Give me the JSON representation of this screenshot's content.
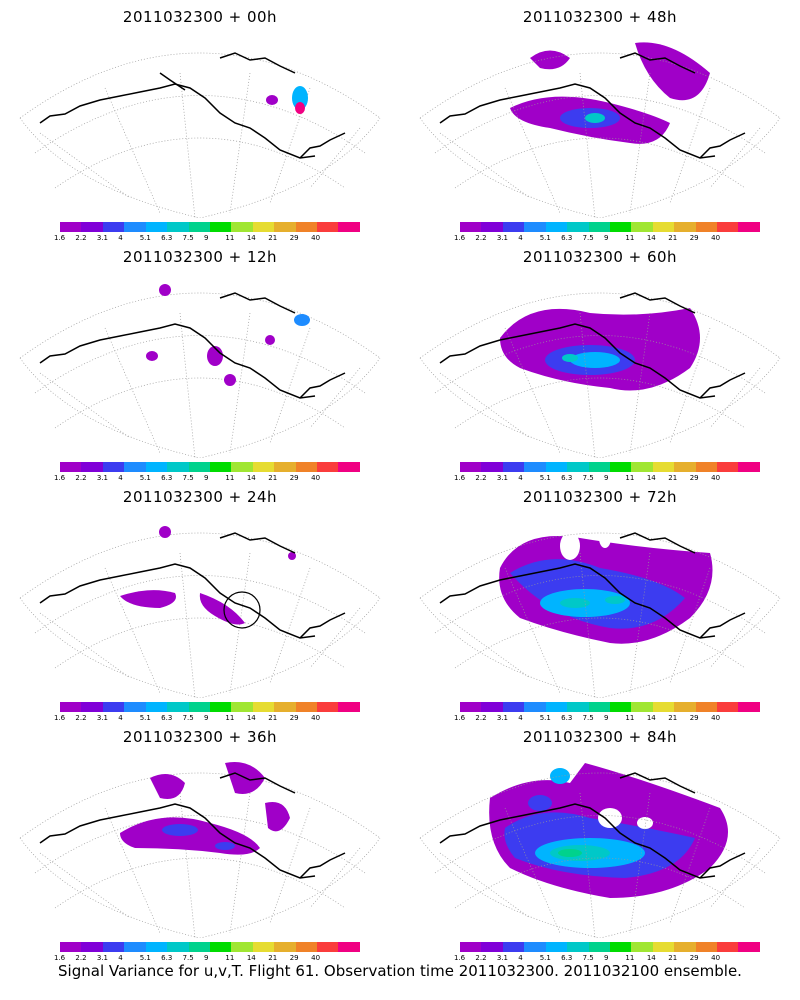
{
  "footer_text": "Signal Variance for u,v,T. Flight 61. Observation time 2011032300. 2011032100 ensemble.",
  "colorbar": {
    "labels": [
      "1.6",
      "2.2",
      "3.1",
      "4",
      "5.1",
      "6.3",
      "7.5",
      "9",
      "11",
      "14",
      "21",
      "29",
      "40"
    ],
    "colors": [
      "#a000c8",
      "#8000d8",
      "#3c3cf0",
      "#1e8cff",
      "#00b4ff",
      "#00c8c8",
      "#00d28c",
      "#00dc00",
      "#a0e632",
      "#e6dc32",
      "#e6af2d",
      "#f08228",
      "#fa3c3c",
      "#f00082"
    ]
  },
  "panels": [
    {
      "title": "2011032300 + 00h",
      "level": 0
    },
    {
      "title": "2011032300 + 48h",
      "level": 3
    },
    {
      "title": "2011032300 + 12h",
      "level": 1
    },
    {
      "title": "2011032300 + 60h",
      "level": 4
    },
    {
      "title": "2011032300 + 24h",
      "level": 1
    },
    {
      "title": "2011032300 + 72h",
      "level": 5
    },
    {
      "title": "2011032300 + 36h",
      "level": 2
    },
    {
      "title": "2011032300 + 84h",
      "level": 6
    }
  ]
}
